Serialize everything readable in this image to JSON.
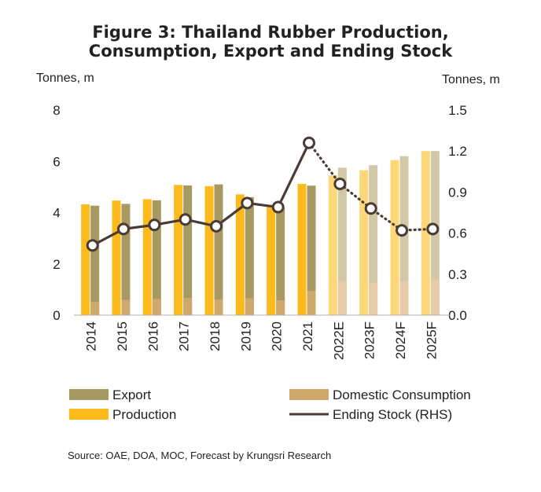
{
  "title_line1": "Figure 3: Thailand Rubber Production,",
  "title_line2": "Consumption, Export and Ending Stock",
  "left_unit": "Tonnes, m",
  "right_unit": "Tonnes, m",
  "source": "Source: OAE, DOA, MOC, Forecast by Krungsri Research",
  "colors": {
    "production": "#FDBA1C",
    "production_forecast": "#FDD878",
    "export": "#A69A62",
    "export_forecast": "#D2C7A7",
    "domestic": "#CFA96B",
    "domestic_forecast": "#E8CBA8",
    "stock": "#4A3B36"
  },
  "legend": [
    {
      "key": "export",
      "label": "Export",
      "kind": "bar"
    },
    {
      "key": "domestic",
      "label": "Domestic Consumption",
      "kind": "bar"
    },
    {
      "key": "production",
      "label": "Production",
      "kind": "bar"
    },
    {
      "key": "stock",
      "label": "Ending Stock (RHS)",
      "kind": "line"
    }
  ],
  "chart_data": {
    "type": "bar",
    "categories": [
      "2014",
      "2015",
      "2016",
      "2017",
      "2018",
      "2019",
      "2020",
      "2021",
      "2022E",
      "2023F",
      "2024F",
      "2025F"
    ],
    "forecast_from_index": 8,
    "series": [
      {
        "name": "Production",
        "axis": "left",
        "values": [
          4.32,
          4.47,
          4.52,
          5.08,
          5.03,
          4.71,
          4.3,
          5.12,
          5.45,
          5.65,
          6.05,
          6.4
        ]
      },
      {
        "name": "Export",
        "axis": "left",
        "values": [
          4.27,
          4.34,
          4.48,
          5.06,
          5.1,
          4.6,
          4.2,
          5.05,
          5.75,
          5.85,
          6.2,
          6.4
        ]
      },
      {
        "name": "Domestic Consumption",
        "axis": "left",
        "values": [
          0.52,
          0.6,
          0.63,
          0.67,
          0.62,
          0.66,
          0.58,
          0.95,
          1.33,
          1.25,
          1.33,
          1.4
        ]
      },
      {
        "name": "Ending Stock (RHS)",
        "axis": "right",
        "type": "line",
        "values": [
          0.51,
          0.63,
          0.66,
          0.7,
          0.65,
          0.82,
          0.79,
          1.26,
          0.96,
          0.78,
          0.62,
          0.63
        ]
      }
    ],
    "ylim": [
      0,
      8
    ],
    "yticks": [
      "0",
      "2",
      "4",
      "6",
      "8"
    ],
    "ylim_right": [
      0,
      1.5
    ],
    "yticks_right": [
      "0.0",
      "0.3",
      "0.6",
      "0.9",
      "1.2",
      "1.5"
    ],
    "grid": false,
    "legend_position": "bottom"
  }
}
